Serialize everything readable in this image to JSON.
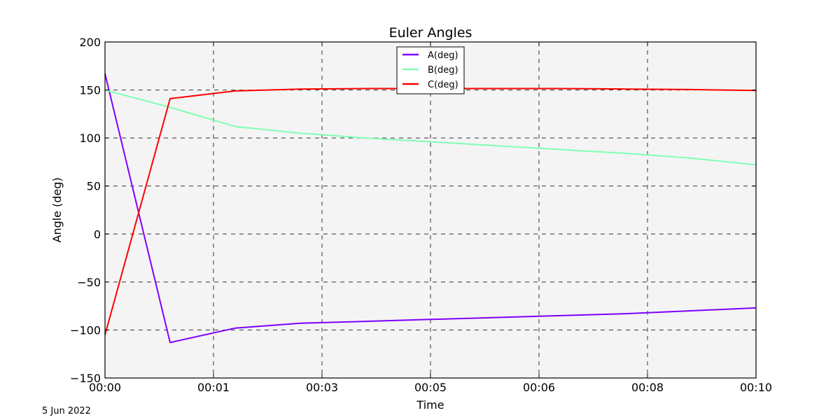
{
  "chart_data": {
    "type": "line",
    "title": "Euler Angles",
    "xlabel": "Time",
    "ylabel": "Angle (deg)",
    "ylim": [
      -150,
      200
    ],
    "yticks": [
      200,
      150,
      100,
      50,
      0,
      -50,
      -100,
      -150
    ],
    "ytick_labels": [
      "200",
      "150",
      "100",
      "50",
      "0",
      "−50",
      "−100",
      "−150"
    ],
    "xtick_labels": [
      "00:00",
      "00:01",
      "00:03",
      "00:05",
      "00:06",
      "00:08",
      "00:10"
    ],
    "grid": true,
    "legend_position": "upper center",
    "annotation": "5 Jun 2022",
    "x_index": [
      0,
      1,
      2,
      3,
      4,
      5,
      6,
      7,
      8,
      9,
      10
    ],
    "series": [
      {
        "name": "A(deg)",
        "color": "#7f00ff",
        "values": [
          167,
          -113,
          -98,
          -93,
          -91,
          -89,
          -87,
          -85,
          -83,
          -80,
          -77
        ]
      },
      {
        "name": "B(deg)",
        "color": "#80ffb4",
        "values": [
          150,
          132,
          112,
          105,
          100,
          96,
          92,
          88,
          84,
          79,
          72
        ]
      },
      {
        "name": "C(deg)",
        "color": "#ff0000",
        "values": [
          -105,
          141,
          149,
          151,
          151.5,
          151.5,
          151.5,
          151.5,
          151,
          150.5,
          149.5
        ]
      }
    ]
  }
}
